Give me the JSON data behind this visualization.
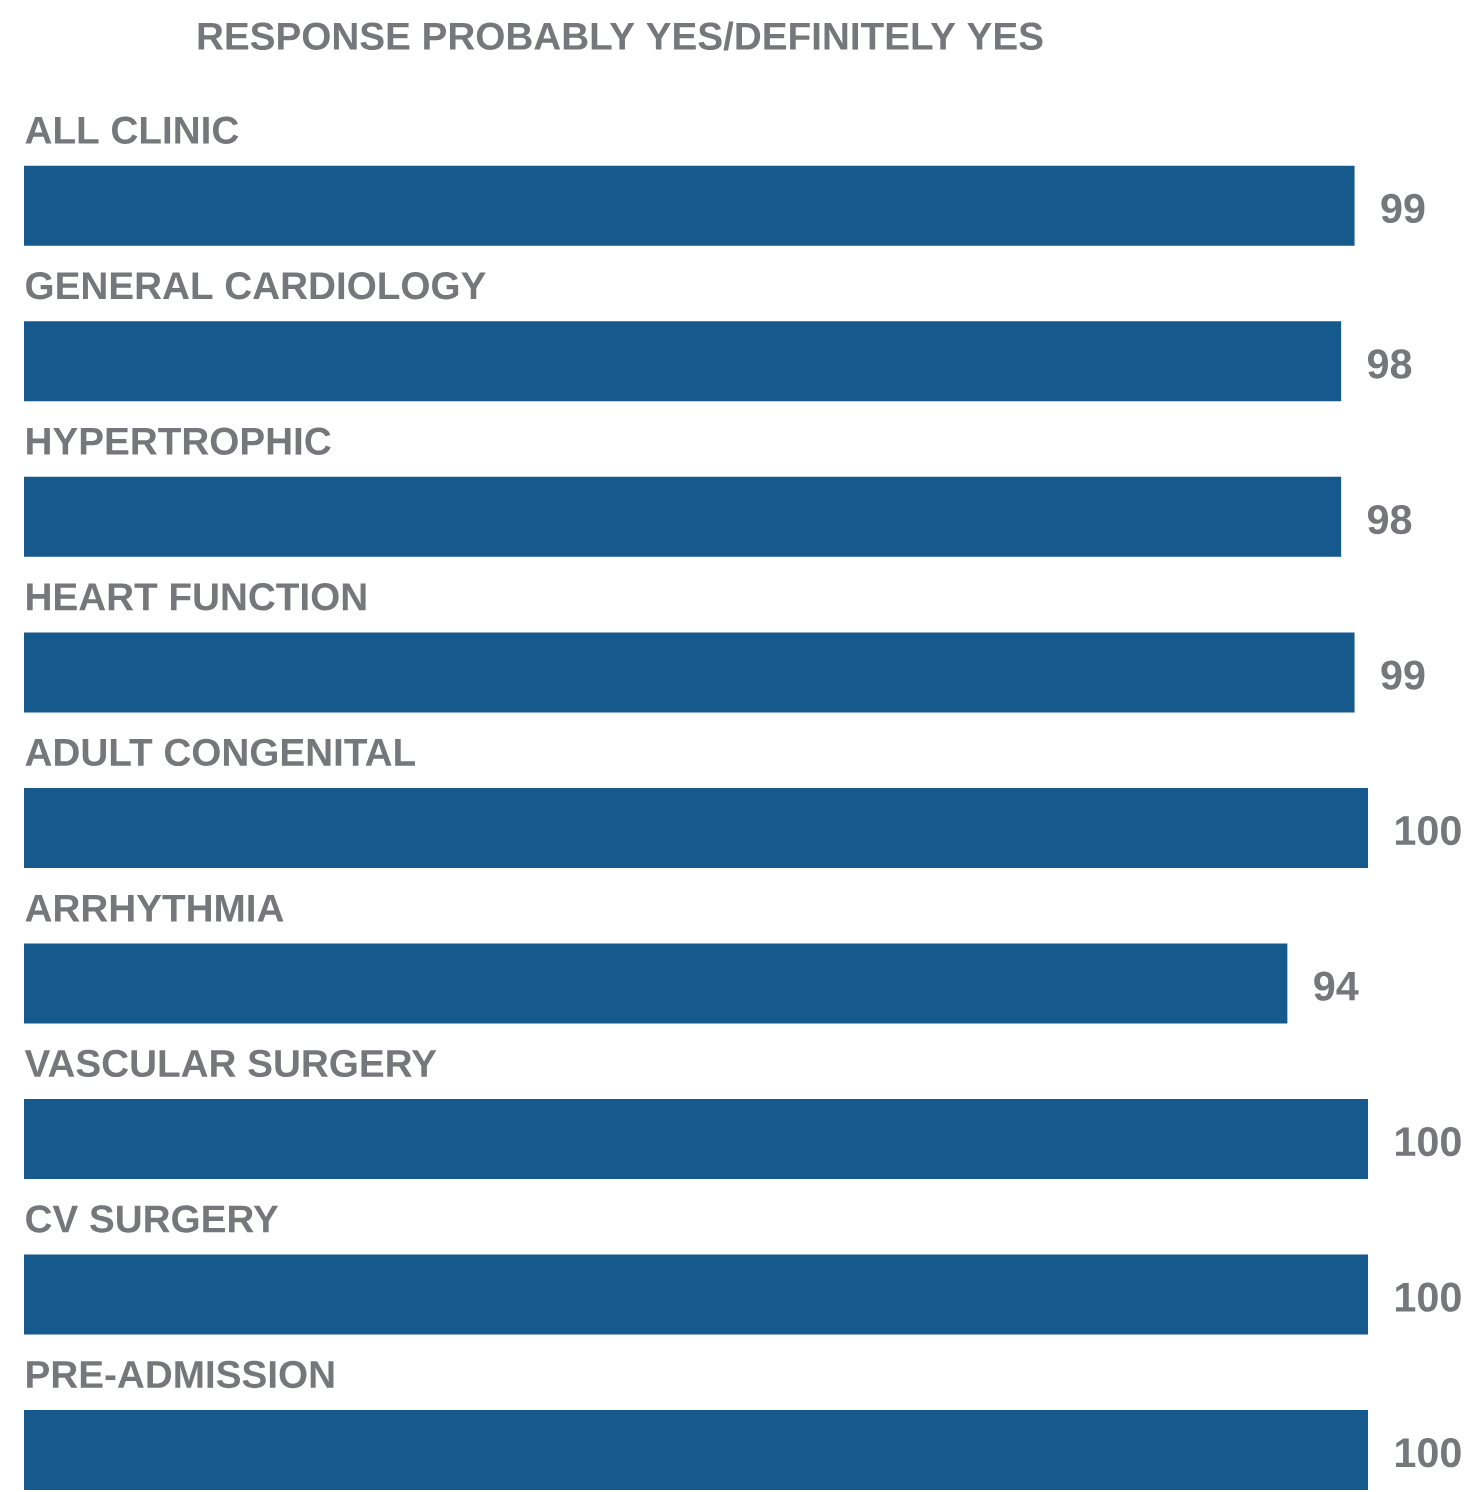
{
  "chart_data": {
    "type": "bar",
    "orientation": "horizontal",
    "title": "RESPONSE PROBABLY YES/DEFINITELY YES",
    "categories": [
      "ALL CLINIC",
      "GENERAL CARDIOLOGY",
      "HYPERTROPHIC",
      "HEART FUNCTION",
      "ADULT CONGENITAL",
      "ARRHYTHMIA",
      "VASCULAR SURGERY",
      "CV SURGERY",
      "PRE-ADMISSION"
    ],
    "values": [
      99,
      98,
      98,
      99,
      100,
      94,
      100,
      100,
      100
    ],
    "color": "#16598c",
    "xlim": [
      0,
      100
    ],
    "data_labels": true
  }
}
